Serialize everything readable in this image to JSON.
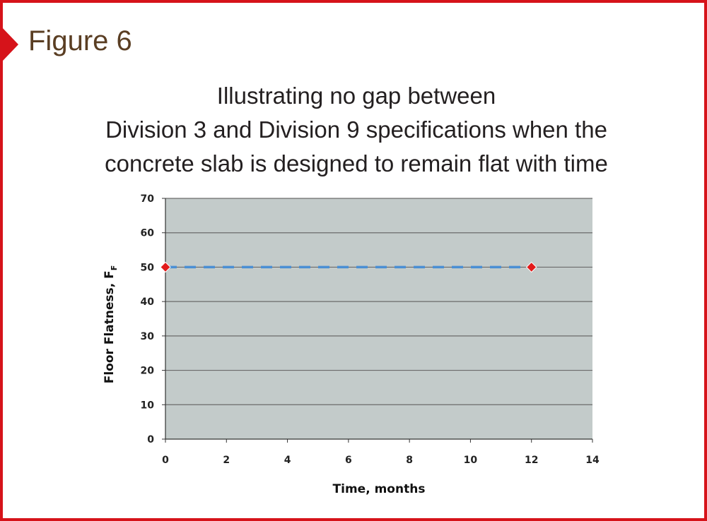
{
  "figure_label": "Figure 6",
  "title_lines": [
    "Illustrating no gap between",
    "Division 3 and Division 9 specifications when the",
    "concrete slab is designed to remain flat with time"
  ],
  "colors": {
    "border": "#d6131a",
    "figure_label": "#5a3e23",
    "plot_bg": "#c3cbca",
    "gridline": "#6b6b6b",
    "line": "#4a8fd4",
    "marker": "#e21b1b"
  },
  "chart_data": {
    "type": "line",
    "title": "Illustrating no gap between Division 3 and Division 9 specifications when the concrete slab is designed to remain flat with time",
    "xlabel": "Time, months",
    "ylabel": "Floor Flatness, F",
    "ylabel_subscript": "F",
    "xlim": [
      0,
      14
    ],
    "ylim": [
      0,
      70
    ],
    "x_ticks": [
      0,
      2,
      4,
      6,
      8,
      10,
      12,
      14
    ],
    "y_ticks": [
      0,
      10,
      20,
      30,
      40,
      50,
      60,
      70
    ],
    "grid": true,
    "line_style": "dashed",
    "marker": "diamond",
    "series": [
      {
        "x": [
          0,
          12
        ],
        "y": [
          50,
          50
        ]
      }
    ]
  }
}
